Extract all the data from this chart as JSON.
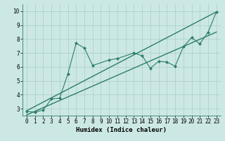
{
  "xlabel": "Humidex (Indice chaleur)",
  "xlim": [
    -0.5,
    23.5
  ],
  "ylim": [
    2.5,
    10.5
  ],
  "yticks": [
    3,
    4,
    5,
    6,
    7,
    8,
    9,
    10
  ],
  "xticks": [
    0,
    1,
    2,
    3,
    4,
    5,
    6,
    7,
    8,
    9,
    10,
    11,
    12,
    13,
    14,
    15,
    16,
    17,
    18,
    19,
    20,
    21,
    22,
    23
  ],
  "scatter_x": [
    0,
    1,
    2,
    3,
    4,
    5,
    6,
    7,
    8,
    10,
    11,
    13,
    14,
    15,
    16,
    17,
    18,
    19,
    20,
    21,
    22,
    23
  ],
  "scatter_y": [
    2.8,
    2.75,
    2.9,
    3.7,
    3.75,
    5.5,
    7.7,
    7.35,
    6.1,
    6.5,
    6.6,
    7.0,
    6.8,
    5.9,
    6.4,
    6.35,
    6.05,
    7.45,
    8.1,
    7.65,
    8.5,
    9.95
  ],
  "line_color": "#2d7d6e",
  "bg_color": "#cce8e4",
  "grid_color": "#aaccc8",
  "trend1_x": [
    0,
    23
  ],
  "trend1_y": [
    2.85,
    9.95
  ],
  "trend2_x": [
    0,
    23
  ],
  "trend2_y": [
    2.55,
    8.5
  ],
  "tick_fontsize": 5.5,
  "axis_fontsize": 6.5
}
